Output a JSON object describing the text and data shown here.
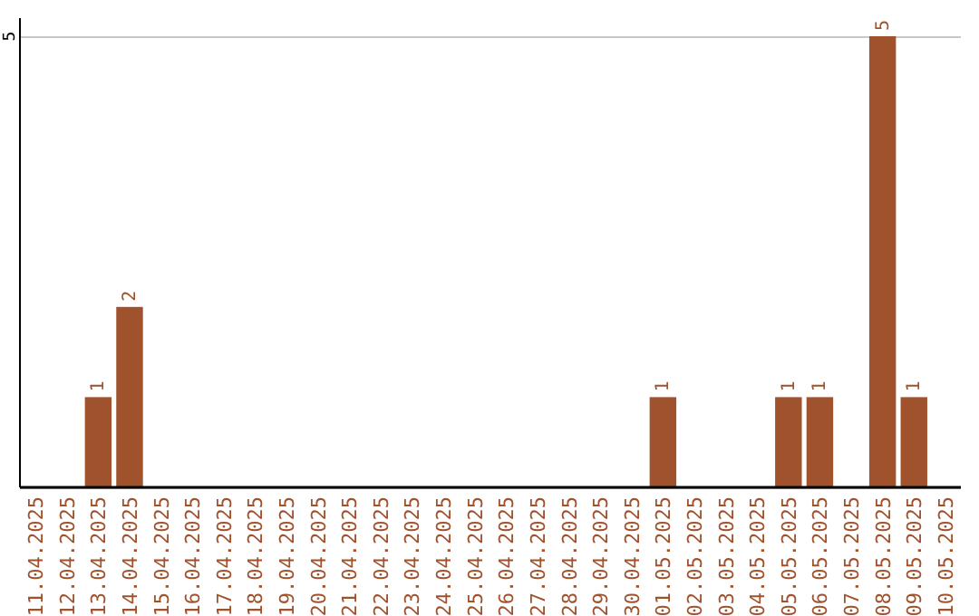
{
  "chart_data": {
    "type": "bar",
    "categories": [
      "11.04.2025",
      "12.04.2025",
      "13.04.2025",
      "14.04.2025",
      "15.04.2025",
      "16.04.2025",
      "17.04.2025",
      "18.04.2025",
      "19.04.2025",
      "20.04.2025",
      "21.04.2025",
      "22.04.2025",
      "23.04.2025",
      "24.04.2025",
      "25.04.2025",
      "26.04.2025",
      "27.04.2025",
      "28.04.2025",
      "29.04.2025",
      "30.04.2025",
      "01.05.2025",
      "02.05.2025",
      "03.05.2025",
      "04.05.2025",
      "05.05.2025",
      "06.05.2025",
      "07.05.2025",
      "08.05.2025",
      "09.05.2025",
      "10.05.2025"
    ],
    "values": [
      0,
      0,
      1,
      2,
      0,
      0,
      0,
      0,
      0,
      0,
      0,
      0,
      0,
      0,
      0,
      0,
      0,
      0,
      0,
      0,
      1,
      0,
      0,
      0,
      1,
      1,
      0,
      5,
      1,
      0
    ],
    "value_labels": [
      null,
      null,
      "1",
      "2",
      null,
      null,
      null,
      null,
      null,
      null,
      null,
      null,
      null,
      null,
      null,
      null,
      null,
      null,
      null,
      null,
      "1",
      null,
      null,
      null,
      "1",
      "1",
      null,
      "5",
      "1",
      null
    ],
    "color": "#a0522d",
    "ylim": [
      0,
      5
    ],
    "yticks": [
      {
        "value": 0,
        "label": null
      },
      5
    ],
    "grid": "y"
  }
}
